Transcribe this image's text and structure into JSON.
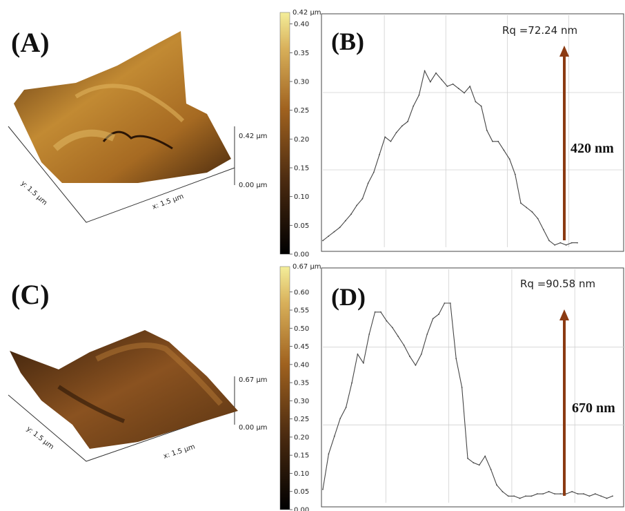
{
  "panels": {
    "A": {
      "label": "(A)",
      "x_axis": "x: 1.5 µm",
      "y_axis": "y: 1.5 µm",
      "z_top": "0.42 µm",
      "z_bottom": "0.00 µm"
    },
    "B": {
      "label": "(B)",
      "rq": "Rq =72.24 nm",
      "height": "420 nm"
    },
    "C": {
      "label": "(C)",
      "x_axis": "x: 1.5 µm",
      "y_axis": "y: 1.5 µm",
      "z_top": "0.67 µm",
      "z_bottom": "0.00 µm"
    },
    "D": {
      "label": "(D)",
      "rq": "Rq =90.58 nm",
      "height": "670 nm"
    }
  },
  "colorbars": [
    {
      "max_label": "0.42 µm",
      "ticks": [
        "0.40",
        "0.35",
        "0.30",
        "0.25",
        "0.20",
        "0.15",
        "0.10",
        "0.05",
        "0.00"
      ],
      "tick_values": [
        0.4,
        0.35,
        0.3,
        0.25,
        0.2,
        0.15,
        0.1,
        0.05,
        0.0
      ],
      "max": 0.42
    },
    {
      "max_label": "0.67 µm",
      "ticks": [
        "0.60",
        "0.55",
        "0.50",
        "0.45",
        "0.40",
        "0.35",
        "0.30",
        "0.25",
        "0.20",
        "0.15",
        "0.10",
        "0.05",
        "0.00"
      ],
      "tick_values": [
        0.6,
        0.55,
        0.5,
        0.45,
        0.4,
        0.35,
        0.3,
        0.25,
        0.2,
        0.15,
        0.1,
        0.05,
        0.0
      ],
      "max": 0.67
    }
  ],
  "colors": {
    "colormap_low": "#000000",
    "colormap_mid": "#a0621f",
    "colormap_high": "#f4ee9a",
    "arrow": "#8b3a12",
    "profile": "#444444",
    "grid": "#d0d0d0"
  },
  "chart_data": [
    {
      "type": "line",
      "panel": "B",
      "annotation": "Rq =72.24 nm",
      "peak_to_valley_label": "420 nm",
      "grid": true,
      "x": [
        0,
        0.02,
        0.04,
        0.06,
        0.08,
        0.1,
        0.12,
        0.14,
        0.16,
        0.18,
        0.2,
        0.22,
        0.24,
        0.26,
        0.28,
        0.3,
        0.32,
        0.34,
        0.36,
        0.38,
        0.4,
        0.42,
        0.44,
        0.46,
        0.48,
        0.5,
        0.52,
        0.54,
        0.56,
        0.58,
        0.6,
        0.62,
        0.64,
        0.66,
        0.68,
        0.7,
        0.72,
        0.74,
        0.76,
        0.78,
        0.8,
        0.82,
        0.84,
        0.86,
        0.88,
        0.9
      ],
      "y": [
        0.03,
        0.05,
        0.07,
        0.09,
        0.12,
        0.15,
        0.19,
        0.22,
        0.29,
        0.34,
        0.42,
        0.5,
        0.48,
        0.52,
        0.55,
        0.57,
        0.64,
        0.69,
        0.8,
        0.75,
        0.79,
        0.76,
        0.73,
        0.74,
        0.72,
        0.7,
        0.73,
        0.66,
        0.64,
        0.53,
        0.48,
        0.48,
        0.44,
        0.4,
        0.33,
        0.2,
        0.18,
        0.16,
        0.13,
        0.08,
        0.03,
        0.01,
        0.02,
        0.01,
        0.02,
        0.02
      ]
    },
    {
      "type": "line",
      "panel": "D",
      "annotation": "Rq =90.58 nm",
      "peak_to_valley_label": "670 nm",
      "grid": true,
      "x": [
        0,
        0.02,
        0.04,
        0.06,
        0.08,
        0.1,
        0.12,
        0.14,
        0.16,
        0.18,
        0.2,
        0.22,
        0.24,
        0.26,
        0.28,
        0.3,
        0.32,
        0.34,
        0.36,
        0.38,
        0.4,
        0.42,
        0.44,
        0.46,
        0.48,
        0.5,
        0.52,
        0.54,
        0.56,
        0.58,
        0.6,
        0.62,
        0.64,
        0.66,
        0.68,
        0.7,
        0.72,
        0.74,
        0.76,
        0.78,
        0.8,
        0.82,
        0.84,
        0.86,
        0.88,
        0.9,
        0.92,
        0.94,
        0.96,
        0.98,
        1.0
      ],
      "y": [
        0.06,
        0.22,
        0.3,
        0.38,
        0.43,
        0.54,
        0.67,
        0.63,
        0.76,
        0.86,
        0.86,
        0.82,
        0.79,
        0.75,
        0.71,
        0.66,
        0.62,
        0.67,
        0.76,
        0.83,
        0.85,
        0.9,
        0.9,
        0.65,
        0.52,
        0.2,
        0.18,
        0.17,
        0.21,
        0.15,
        0.08,
        0.05,
        0.03,
        0.03,
        0.02,
        0.03,
        0.03,
        0.04,
        0.04,
        0.05,
        0.04,
        0.04,
        0.04,
        0.05,
        0.04,
        0.04,
        0.03,
        0.04,
        0.03,
        0.02,
        0.03
      ]
    }
  ]
}
